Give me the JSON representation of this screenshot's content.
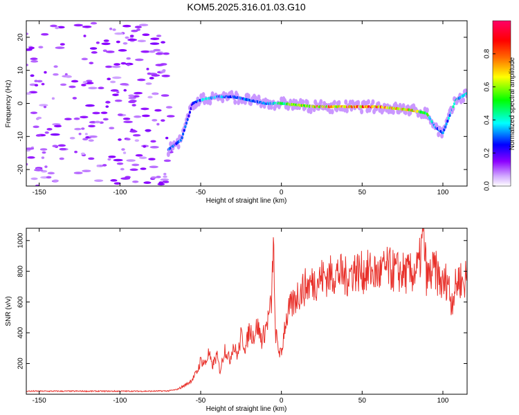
{
  "figure": {
    "title": "KOM5.2025.316.01.03.G10"
  },
  "chart_data": [
    {
      "type": "heatmap",
      "title": "KOM5.2025.316.01.03.G10",
      "xlabel": "Height of straight line (km)",
      "ylabel": "Frequency (Hz)",
      "xlim": [
        -158,
        115
      ],
      "ylim": [
        -25,
        25
      ],
      "xticks": [
        -150,
        -100,
        -50,
        0,
        50,
        100
      ],
      "yticks": [
        -20,
        -10,
        0,
        10,
        20
      ],
      "xtick_labels": [
        "-150",
        "-100",
        "-50",
        "0",
        "50",
        "100"
      ],
      "ytick_labels": [
        "-20",
        "-10",
        "0",
        "10",
        "20"
      ],
      "colorbar": {
        "label": "Normalized spectral amplitude",
        "range": [
          0,
          1
        ],
        "ticks": [
          0.0,
          0.2,
          0.4,
          0.6,
          0.8
        ],
        "tick_labels": [
          "0.0",
          "0.2",
          "0.4",
          "0.6",
          "0.8"
        ],
        "colors": [
          "#ffffff",
          "#d2aaff",
          "#8c00ff",
          "#0000ff",
          "#00ffff",
          "#00ff00",
          "#ffff00",
          "#ff6600",
          "#ff0000",
          "#ff0066"
        ]
      },
      "ridge": {
        "x": [
          -70,
          -62,
          -55,
          -50,
          -40,
          -30,
          -20,
          -10,
          0,
          20,
          40,
          60,
          80,
          90,
          95,
          100,
          108,
          115
        ],
        "freq": [
          -14,
          -11,
          0,
          1,
          2,
          2,
          1,
          0,
          0,
          -1,
          -1,
          -1,
          -2,
          -3,
          -7,
          -9,
          1,
          3
        ],
        "amplitude": [
          0.3,
          0.3,
          0.25,
          0.35,
          0.35,
          0.3,
          0.3,
          0.3,
          0.5,
          0.7,
          0.75,
          0.8,
          0.7,
          0.5,
          0.35,
          0.3,
          0.4,
          0.4
        ]
      },
      "noise_region_x": [
        -158,
        -68
      ]
    },
    {
      "type": "line",
      "xlabel": "Height of straight line (km)",
      "ylabel": "SNR (v/v)",
      "xlim": [
        -158,
        115
      ],
      "ylim": [
        0,
        1080
      ],
      "xticks": [
        -150,
        -100,
        -50,
        0,
        50,
        100
      ],
      "yticks": [
        200,
        400,
        600,
        800,
        1000
      ],
      "xtick_labels": [
        "-150",
        "-100",
        "-50",
        "0",
        "50",
        "100"
      ],
      "ytick_labels": [
        "200",
        "400",
        "600",
        "800",
        "1000"
      ],
      "color": "#e8302a",
      "series": [
        {
          "name": "SNR",
          "x": [
            -158,
            -150,
            -140,
            -130,
            -120,
            -110,
            -100,
            -90,
            -80,
            -70,
            -65,
            -62,
            -58,
            -55,
            -52,
            -50,
            -47,
            -45,
            -43,
            -40,
            -38,
            -35,
            -32,
            -30,
            -27,
            -25,
            -22,
            -20,
            -17,
            -15,
            -12,
            -10,
            -8,
            -6,
            -5,
            -4,
            -2,
            0,
            2,
            5,
            8,
            10,
            15,
            20,
            25,
            30,
            35,
            40,
            45,
            50,
            55,
            60,
            65,
            70,
            75,
            80,
            85,
            88,
            90,
            95,
            100,
            103,
            105,
            108,
            110,
            113,
            115
          ],
          "y": [
            20,
            20,
            20,
            20,
            20,
            20,
            20,
            20,
            20,
            22,
            30,
            45,
            70,
            100,
            150,
            220,
            200,
            270,
            180,
            250,
            150,
            300,
            220,
            320,
            250,
            380,
            300,
            420,
            380,
            450,
            350,
            420,
            500,
            600,
            1050,
            430,
            300,
            250,
            450,
            550,
            600,
            650,
            700,
            730,
            760,
            770,
            790,
            760,
            810,
            790,
            800,
            780,
            820,
            800,
            790,
            780,
            820,
            1040,
            750,
            810,
            700,
            760,
            600,
            700,
            760,
            720,
            780
          ]
        }
      ]
    }
  ]
}
